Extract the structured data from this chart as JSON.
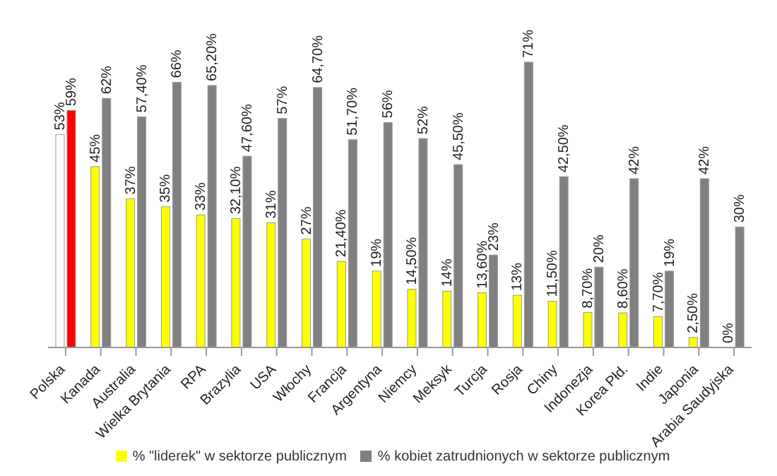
{
  "chart_data": {
    "type": "bar",
    "categories": [
      "Polska",
      "Kanada",
      "Australia",
      "Wielka Brytania",
      "RPA",
      "Brazylia",
      "USA",
      "Włochy",
      "Francja",
      "Argentyna",
      "Niemcy",
      "Meksyk",
      "Turcja",
      "Rosja",
      "Chiny",
      "Indonezja",
      "Korea Płd.",
      "Indie",
      "Japonia",
      "Arabia Saudyjska"
    ],
    "series": [
      {
        "name": "% \"liderek\" w sektorze publicznym",
        "color": "#ffff00",
        "colors": [
          "#ffffff",
          "#ffff00",
          "#ffff00",
          "#ffff00",
          "#ffff00",
          "#ffff00",
          "#ffff00",
          "#ffff00",
          "#ffff00",
          "#ffff00",
          "#ffff00",
          "#ffff00",
          "#ffff00",
          "#ffff00",
          "#ffff00",
          "#ffff00",
          "#ffff00",
          "#ffff00",
          "#ffff00",
          null
        ],
        "values": [
          53,
          45,
          37,
          35,
          33,
          32.1,
          31,
          27,
          21.4,
          19,
          14.5,
          14,
          13.6,
          13,
          11.5,
          8.7,
          8.6,
          7.7,
          2.5,
          0
        ],
        "value_labels": [
          "53%",
          "45%",
          "37%",
          "35%",
          "33%",
          "32,10%",
          "31%",
          "27%",
          "21,40%",
          "19%",
          "14,50%",
          "14%",
          "13,60%",
          "13%",
          "11,50%",
          "8,70%",
          "8,60%",
          "7,70%",
          "2,50%",
          "0%"
        ]
      },
      {
        "name": "% kobiet zatrudnionych w sektorze publicznym",
        "color": "#808080",
        "colors": [
          "#ff0000",
          "#808080",
          "#808080",
          "#808080",
          "#808080",
          "#808080",
          "#808080",
          "#808080",
          "#808080",
          "#808080",
          "#808080",
          "#808080",
          "#808080",
          "#808080",
          "#808080",
          "#808080",
          "#808080",
          "#808080",
          "#808080",
          "#808080"
        ],
        "values": [
          59,
          62,
          57.4,
          66,
          65.2,
          47.6,
          57,
          64.7,
          51.7,
          56,
          52,
          45.5,
          23,
          71,
          42.5,
          20,
          42,
          19,
          42,
          30
        ],
        "value_labels": [
          "59%",
          "62%",
          "57,40%",
          "66%",
          "65,20%",
          "47,60%",
          "57%",
          "64,70%",
          "51,70%",
          "56%",
          "52%",
          "45,50%",
          "23%",
          "71%",
          "42,50%",
          "20%",
          "42%",
          "19%",
          "42%",
          "30%"
        ]
      }
    ],
    "legend": "bottom",
    "grid": false
  }
}
